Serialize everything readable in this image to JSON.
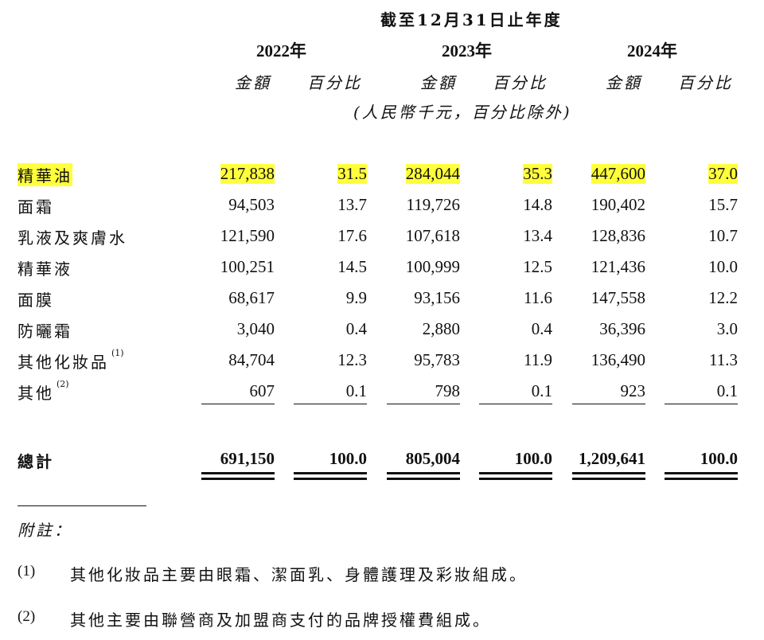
{
  "header": {
    "period": "截至12月31日止年度",
    "years": [
      "2022年",
      "2023年",
      "2024年"
    ],
    "col_amount": "金額",
    "col_percent": "百分比",
    "unit_note": "(人民幣千元，百分比除外)"
  },
  "rows": [
    {
      "label": "精華油",
      "note": "",
      "values": [
        "217,838",
        "31.5",
        "284,044",
        "35.3",
        "447,600",
        "37.0"
      ],
      "highlight": true
    },
    {
      "label": "面霜",
      "note": "",
      "values": [
        "94,503",
        "13.7",
        "119,726",
        "14.8",
        "190,402",
        "15.7"
      ],
      "highlight": false
    },
    {
      "label": "乳液及爽膚水",
      "note": "",
      "values": [
        "121,590",
        "17.6",
        "107,618",
        "13.4",
        "128,836",
        "10.7"
      ],
      "highlight": false
    },
    {
      "label": "精華液",
      "note": "",
      "values": [
        "100,251",
        "14.5",
        "100,999",
        "12.5",
        "121,436",
        "10.0"
      ],
      "highlight": false
    },
    {
      "label": "面膜",
      "note": "",
      "values": [
        "68,617",
        "9.9",
        "93,156",
        "11.6",
        "147,558",
        "12.2"
      ],
      "highlight": false
    },
    {
      "label": "防曬霜",
      "note": "",
      "values": [
        "3,040",
        "0.4",
        "2,880",
        "0.4",
        "36,396",
        "3.0"
      ],
      "highlight": false
    },
    {
      "label": "其他化妝品",
      "note": "(1)",
      "values": [
        "84,704",
        "12.3",
        "95,783",
        "11.9",
        "136,490",
        "11.3"
      ],
      "highlight": false
    },
    {
      "label": "其他",
      "note": "(2)",
      "values": [
        "607",
        "0.1",
        "798",
        "0.1",
        "923",
        "0.1"
      ],
      "highlight": false
    }
  ],
  "total": {
    "label": "總計",
    "values": [
      "691,150",
      "100.0",
      "805,004",
      "100.0",
      "1,209,641",
      "100.0"
    ]
  },
  "notes": {
    "heading": "附註：",
    "items": [
      {
        "marker": "(1)",
        "text": "其他化妝品主要由眼霜、潔面乳、身體護理及彩妝組成。"
      },
      {
        "marker": "(2)",
        "text": "其他主要由聯營商及加盟商支付的品牌授權費組成。"
      }
    ]
  },
  "colors": {
    "highlight": "#ffff3c",
    "text": "#111111"
  }
}
